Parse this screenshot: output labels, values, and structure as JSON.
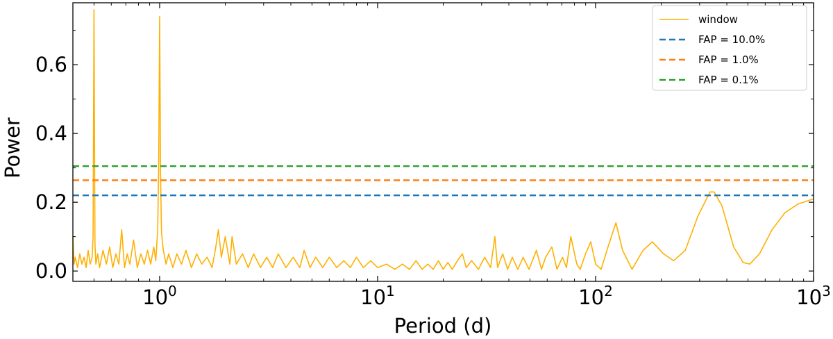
{
  "chart_data": {
    "type": "line",
    "title": "",
    "xlabel": "Period (d)",
    "ylabel": "Power",
    "x_scale": "log",
    "xlim": [
      0.4,
      1000
    ],
    "ylim": [
      -0.03,
      0.78
    ],
    "grid": false,
    "legend_position": "top-right",
    "x_ticks": [
      {
        "value": 1,
        "base": "10",
        "exp": "0"
      },
      {
        "value": 10,
        "base": "10",
        "exp": "1"
      },
      {
        "value": 100,
        "base": "10",
        "exp": "2"
      },
      {
        "value": 1000,
        "base": "10",
        "exp": "3"
      }
    ],
    "y_ticks": [
      {
        "value": 0.0,
        "label": "0.0"
      },
      {
        "value": 0.2,
        "label": "0.2"
      },
      {
        "value": 0.4,
        "label": "0.4"
      },
      {
        "value": 0.6,
        "label": "0.6"
      }
    ],
    "series": [
      {
        "name": "window",
        "color": "#FFB000",
        "style": "solid",
        "points": [
          [
            0.4,
            0.1
          ],
          [
            0.405,
            0.02
          ],
          [
            0.41,
            0.04
          ],
          [
            0.42,
            0.01
          ],
          [
            0.43,
            0.05
          ],
          [
            0.44,
            0.02
          ],
          [
            0.45,
            0.04
          ],
          [
            0.46,
            0.01
          ],
          [
            0.47,
            0.06
          ],
          [
            0.48,
            0.02
          ],
          [
            0.49,
            0.04
          ],
          [
            0.495,
            0.1
          ],
          [
            0.5,
            0.76
          ],
          [
            0.505,
            0.08
          ],
          [
            0.51,
            0.02
          ],
          [
            0.52,
            0.05
          ],
          [
            0.53,
            0.01
          ],
          [
            0.55,
            0.06
          ],
          [
            0.57,
            0.02
          ],
          [
            0.59,
            0.07
          ],
          [
            0.61,
            0.01
          ],
          [
            0.63,
            0.05
          ],
          [
            0.65,
            0.02
          ],
          [
            0.67,
            0.12
          ],
          [
            0.69,
            0.01
          ],
          [
            0.71,
            0.05
          ],
          [
            0.73,
            0.02
          ],
          [
            0.76,
            0.09
          ],
          [
            0.79,
            0.01
          ],
          [
            0.82,
            0.05
          ],
          [
            0.85,
            0.02
          ],
          [
            0.88,
            0.06
          ],
          [
            0.91,
            0.02
          ],
          [
            0.94,
            0.07
          ],
          [
            0.96,
            0.03
          ],
          [
            0.98,
            0.12
          ],
          [
            0.99,
            0.3
          ],
          [
            1.0,
            0.74
          ],
          [
            1.01,
            0.28
          ],
          [
            1.02,
            0.11
          ],
          [
            1.04,
            0.06
          ],
          [
            1.07,
            0.02
          ],
          [
            1.1,
            0.05
          ],
          [
            1.15,
            0.01
          ],
          [
            1.2,
            0.05
          ],
          [
            1.26,
            0.02
          ],
          [
            1.32,
            0.06
          ],
          [
            1.4,
            0.01
          ],
          [
            1.48,
            0.05
          ],
          [
            1.56,
            0.02
          ],
          [
            1.65,
            0.04
          ],
          [
            1.74,
            0.01
          ],
          [
            1.8,
            0.06
          ],
          [
            1.86,
            0.12
          ],
          [
            1.92,
            0.04
          ],
          [
            2.0,
            0.1
          ],
          [
            2.1,
            0.02
          ],
          [
            2.15,
            0.1
          ],
          [
            2.25,
            0.02
          ],
          [
            2.4,
            0.05
          ],
          [
            2.55,
            0.01
          ],
          [
            2.7,
            0.05
          ],
          [
            2.9,
            0.01
          ],
          [
            3.1,
            0.04
          ],
          [
            3.3,
            0.01
          ],
          [
            3.5,
            0.05
          ],
          [
            3.8,
            0.01
          ],
          [
            4.1,
            0.04
          ],
          [
            4.4,
            0.01
          ],
          [
            4.6,
            0.06
          ],
          [
            4.9,
            0.01
          ],
          [
            5.2,
            0.04
          ],
          [
            5.6,
            0.01
          ],
          [
            6.0,
            0.04
          ],
          [
            6.5,
            0.01
          ],
          [
            7.0,
            0.03
          ],
          [
            7.5,
            0.01
          ],
          [
            8.0,
            0.04
          ],
          [
            8.6,
            0.01
          ],
          [
            9.3,
            0.03
          ],
          [
            10.0,
            0.01
          ],
          [
            11.0,
            0.02
          ],
          [
            12.0,
            0.005
          ],
          [
            13.0,
            0.02
          ],
          [
            14.0,
            0.005
          ],
          [
            15.0,
            0.03
          ],
          [
            16.0,
            0.005
          ],
          [
            17.0,
            0.02
          ],
          [
            18.0,
            0.005
          ],
          [
            19.0,
            0.03
          ],
          [
            20.0,
            0.005
          ],
          [
            21.0,
            0.025
          ],
          [
            22.0,
            0.005
          ],
          [
            23.5,
            0.035
          ],
          [
            24.5,
            0.05
          ],
          [
            25.5,
            0.01
          ],
          [
            27.0,
            0.03
          ],
          [
            29.0,
            0.005
          ],
          [
            31.0,
            0.04
          ],
          [
            33.0,
            0.01
          ],
          [
            34.5,
            0.1
          ],
          [
            35.5,
            0.01
          ],
          [
            37.5,
            0.05
          ],
          [
            39.5,
            0.005
          ],
          [
            41.5,
            0.04
          ],
          [
            44.0,
            0.005
          ],
          [
            46.5,
            0.04
          ],
          [
            49.5,
            0.005
          ],
          [
            53.5,
            0.06
          ],
          [
            56.5,
            0.005
          ],
          [
            59.0,
            0.04
          ],
          [
            63.0,
            0.07
          ],
          [
            66.5,
            0.005
          ],
          [
            70.5,
            0.04
          ],
          [
            73.5,
            0.01
          ],
          [
            77.0,
            0.1
          ],
          [
            82.0,
            0.02
          ],
          [
            85.0,
            0.005
          ],
          [
            90.0,
            0.05
          ],
          [
            95.0,
            0.085
          ],
          [
            100.0,
            0.02
          ],
          [
            106.0,
            0.005
          ],
          [
            114.0,
            0.07
          ],
          [
            124.0,
            0.14
          ],
          [
            133.0,
            0.06
          ],
          [
            147.0,
            0.005
          ],
          [
            165.0,
            0.06
          ],
          [
            182.0,
            0.085
          ],
          [
            205.0,
            0.05
          ],
          [
            228.0,
            0.03
          ],
          [
            258.0,
            0.06
          ],
          [
            295.0,
            0.16
          ],
          [
            335.0,
            0.23
          ],
          [
            350.0,
            0.23
          ],
          [
            380.0,
            0.19
          ],
          [
            430.0,
            0.07
          ],
          [
            475.0,
            0.025
          ],
          [
            510.0,
            0.02
          ],
          [
            565.0,
            0.05
          ],
          [
            645.0,
            0.12
          ],
          [
            740.0,
            0.17
          ],
          [
            850.0,
            0.195
          ],
          [
            1000.0,
            0.21
          ]
        ]
      },
      {
        "name": "FAP = 10.0%",
        "color": "#1F77B4",
        "style": "dashed",
        "y": 0.22
      },
      {
        "name": "FAP =  1.0%",
        "color": "#FF7F0E",
        "style": "dashed",
        "y": 0.264
      },
      {
        "name": "FAP =  0.1%",
        "color": "#2CA02C",
        "style": "dashed",
        "y": 0.305
      }
    ]
  }
}
